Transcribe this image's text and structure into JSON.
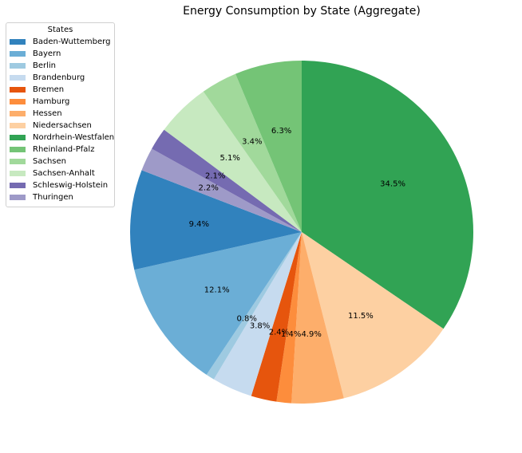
{
  "chart_data": {
    "type": "pie",
    "title": "Energy Consumption by State (Aggregate)",
    "legend_title": "States",
    "legend_position": "upper-left",
    "start_angle_deg": 90,
    "direction": "clockwise",
    "slices": [
      {
        "label": "Nordrhein-Westfalen",
        "value": 34.5,
        "pct_label": "34.5%",
        "color": "#31a354"
      },
      {
        "label": "Niedersachsen",
        "value": 11.5,
        "pct_label": "11.5%",
        "color": "#fdd0a2"
      },
      {
        "label": "Hessen",
        "value": 4.9,
        "pct_label": "4.9%",
        "color": "#fdae6b"
      },
      {
        "label": "Hamburg",
        "value": 1.4,
        "pct_label": "1.4%",
        "color": "#fd8d3c"
      },
      {
        "label": "Bremen",
        "value": 2.4,
        "pct_label": "2.4%",
        "color": "#e6550d"
      },
      {
        "label": "Brandenburg",
        "value": 3.8,
        "pct_label": "3.8%",
        "color": "#c6dbef"
      },
      {
        "label": "Berlin",
        "value": 0.8,
        "pct_label": "0.8%",
        "color": "#9ecae1"
      },
      {
        "label": "Bayern",
        "value": 12.1,
        "pct_label": "12.1%",
        "color": "#6baed6"
      },
      {
        "label": "Baden-Wuttemberg",
        "value": 9.4,
        "pct_label": "9.4%",
        "color": "#3182bd"
      },
      {
        "label": "Thuringen",
        "value": 2.2,
        "pct_label": "2.2%",
        "color": "#9e9ac8"
      },
      {
        "label": "Schleswig-Holstein",
        "value": 2.1,
        "pct_label": "2.1%",
        "color": "#756bb1"
      },
      {
        "label": "Sachsen-Anhalt",
        "value": 5.1,
        "pct_label": "5.1%",
        "color": "#c7e9c0"
      },
      {
        "label": "Sachsen",
        "value": 3.4,
        "pct_label": "3.4%",
        "color": "#a1d99b"
      },
      {
        "label": "Rheinland-Pfalz",
        "value": 6.3,
        "pct_label": "6.3%",
        "color": "#74c476"
      }
    ],
    "legend_entries": [
      {
        "label": "Baden-Wuttemberg",
        "color": "#3182bd"
      },
      {
        "label": "Bayern",
        "color": "#6baed6"
      },
      {
        "label": "Berlin",
        "color": "#9ecae1"
      },
      {
        "label": "Brandenburg",
        "color": "#c6dbef"
      },
      {
        "label": "Bremen",
        "color": "#e6550d"
      },
      {
        "label": "Hamburg",
        "color": "#fd8d3c"
      },
      {
        "label": "Hessen",
        "color": "#fdae6b"
      },
      {
        "label": "Niedersachsen",
        "color": "#fdd0a2"
      },
      {
        "label": "Nordrhein-Westfalen",
        "color": "#31a354"
      },
      {
        "label": "Rheinland-Pfalz",
        "color": "#74c476"
      },
      {
        "label": "Sachsen",
        "color": "#a1d99b"
      },
      {
        "label": "Sachsen-Anhalt",
        "color": "#c7e9c0"
      },
      {
        "label": "Schleswig-Holstein",
        "color": "#756bb1"
      },
      {
        "label": "Thuringen",
        "color": "#9e9ac8"
      }
    ]
  }
}
